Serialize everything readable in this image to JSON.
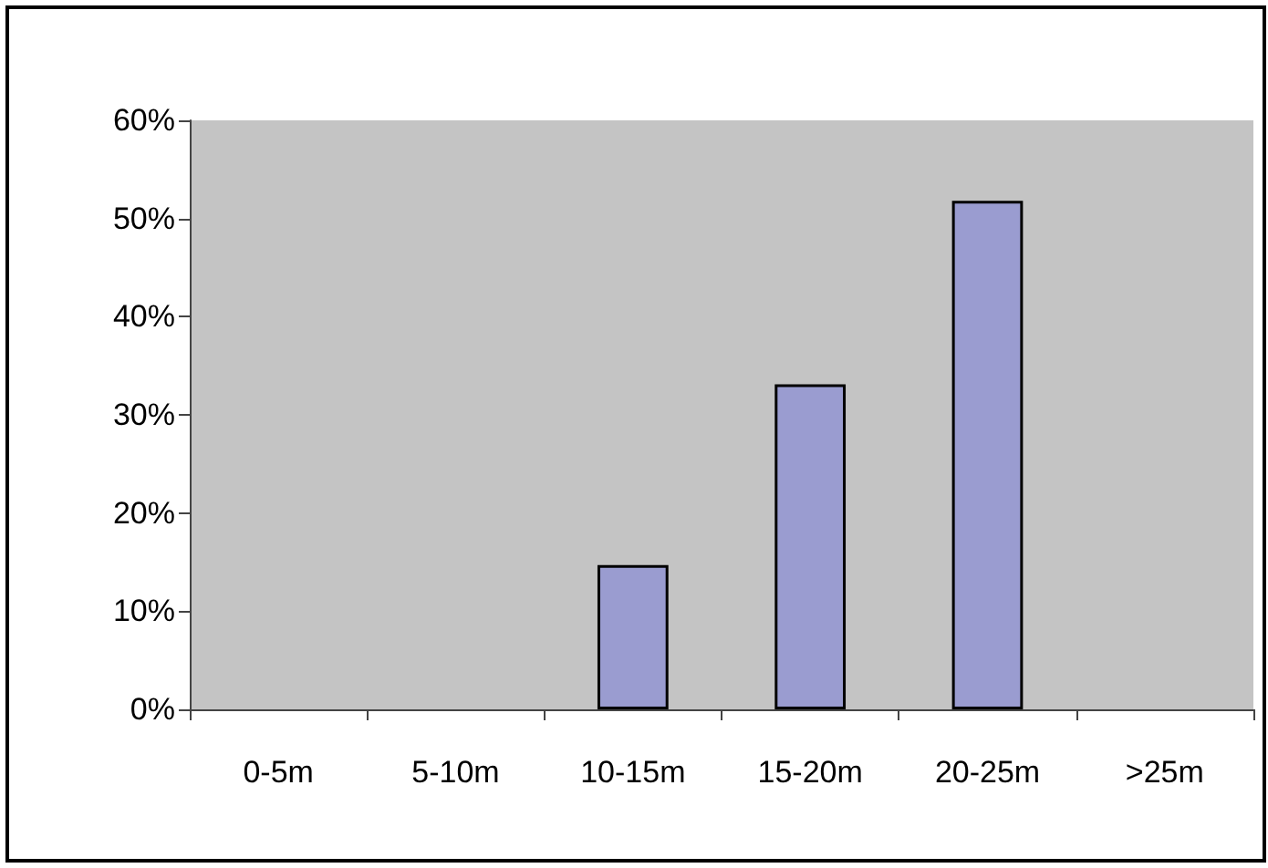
{
  "chart_data": {
    "type": "bar",
    "categories": [
      "0-5m",
      "5-10m",
      "10-15m",
      "15-20m",
      "20-25m",
      ">25m"
    ],
    "values": [
      null,
      null,
      14.7,
      33.1,
      51.8,
      null
    ],
    "color": "#9a9cd0",
    "ylim": [
      0,
      60
    ],
    "yticks": [
      {
        "value": 0,
        "label": "0%"
      },
      {
        "value": 10,
        "label": "10%"
      },
      {
        "value": 20,
        "label": "20%"
      },
      {
        "value": 30,
        "label": "30%"
      },
      {
        "value": 40,
        "label": "40%"
      },
      {
        "value": 50,
        "label": "50%"
      },
      {
        "value": 60,
        "label": "60%"
      }
    ],
    "grid": false
  }
}
